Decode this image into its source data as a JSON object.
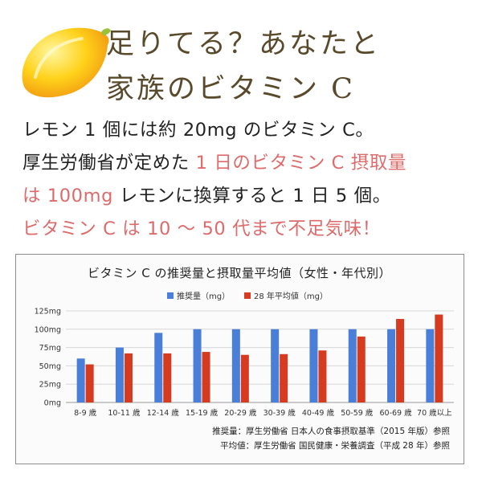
{
  "headline": {
    "line1": "足りてる？あなたと",
    "line2": "家族のビタミン C"
  },
  "body": {
    "line1": "レモン 1 個には約 20mg のビタミン C。",
    "line2_black": "厚生労働省が定めた ",
    "line2_red": "1 日のビタミン C 摂取量",
    "line3_red": "は 100mg",
    "line3_black": " レモンに換算すると 1 日 5 個。",
    "line4": "ビタミン C は 10 〜 50 代まで不足気味！"
  },
  "colors": {
    "accent_red": "#de6b6b",
    "bar_blue": "#4a7fd9",
    "bar_red": "#d63b1f",
    "headline": "#5a4a2c"
  },
  "icon": "lemon-illustration",
  "chart_data": {
    "type": "bar",
    "title": "ビタミン C の推奨量と摂取量平均値（女性・年代別）",
    "categories": [
      "8-9 歳",
      "10-11 歳",
      "12-14 歳",
      "15-19 歳",
      "20-29 歳",
      "30-39 歳",
      "40-49 歳",
      "50-59 歳",
      "60-69 歳",
      "70 歳以上"
    ],
    "series": [
      {
        "name": "推奨量（mg）",
        "color": "#4a7fd9",
        "values": [
          60,
          75,
          95,
          100,
          100,
          100,
          100,
          100,
          100,
          100
        ]
      },
      {
        "name": "28 年平均値（mg）",
        "color": "#d63b1f",
        "values": [
          52,
          67,
          67,
          69,
          65,
          66,
          71,
          90,
          114,
          120
        ]
      }
    ],
    "y_ticks": [
      "125mg",
      "100mg",
      "75mg",
      "50mg",
      "25mg",
      "0mg"
    ],
    "ylim": [
      0,
      125
    ],
    "legend_position": "top-center",
    "grid": true,
    "notes": [
      "推奨量：厚生労働省 日本人の食事摂取基準（2015 年版）参照",
      "平均値：厚生労働省 国民健康・栄養調査（平成 28 年）参照"
    ]
  }
}
